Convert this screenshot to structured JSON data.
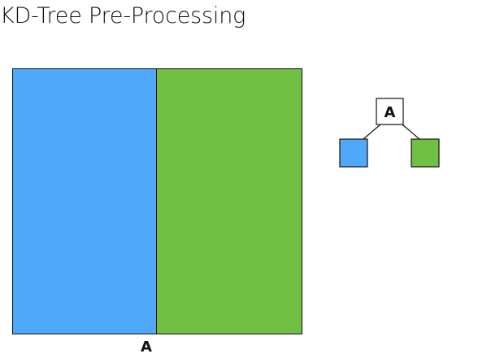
{
  "title": "KD-Tree Pre-Processing",
  "split_label": "A",
  "tree": {
    "root_label": "A",
    "left_leaf_color": "#4fa8fa",
    "right_leaf_color": "#71bf43"
  },
  "regions": {
    "left_color": "#4fa8fa",
    "right_color": "#71bf43"
  }
}
